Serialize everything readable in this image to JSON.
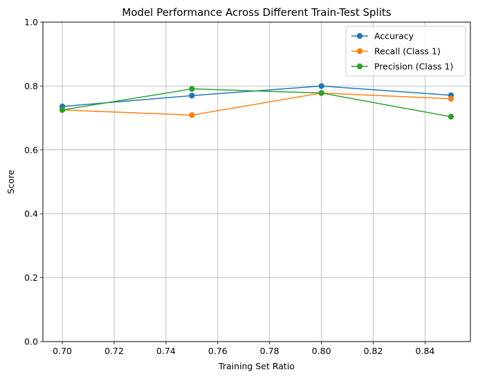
{
  "chart_data": {
    "type": "line",
    "title": "Model Performance Across Different Train-Test Splits",
    "xlabel": "Training Set Ratio",
    "ylabel": "Score",
    "x": [
      0.7,
      0.75,
      0.8,
      0.85
    ],
    "xlim": [
      0.6925,
      0.8575
    ],
    "ylim": [
      0,
      1.0
    ],
    "xticks": [
      0.7,
      0.72,
      0.74,
      0.76,
      0.78,
      0.8,
      0.82,
      0.84
    ],
    "xtick_labels": [
      "0.70",
      "0.72",
      "0.74",
      "0.76",
      "0.78",
      "0.80",
      "0.82",
      "0.84"
    ],
    "yticks": [
      0.0,
      0.2,
      0.4,
      0.6,
      0.8,
      1.0
    ],
    "ytick_labels": [
      "0.0",
      "0.2",
      "0.4",
      "0.6",
      "0.8",
      "1.0"
    ],
    "grid": true,
    "legend_position": "top-right",
    "marker": "circle",
    "series": [
      {
        "name": "Accuracy",
        "color": "#1f77b4",
        "values": [
          0.736,
          0.77,
          0.8,
          0.771
        ]
      },
      {
        "name": "Recall (Class 1)",
        "color": "#ff7f0e",
        "values": [
          0.725,
          0.709,
          0.778,
          0.76
        ]
      },
      {
        "name": "Precision (Class 1)",
        "color": "#2ca02c",
        "values": [
          0.725,
          0.791,
          0.778,
          0.704
        ]
      }
    ]
  }
}
